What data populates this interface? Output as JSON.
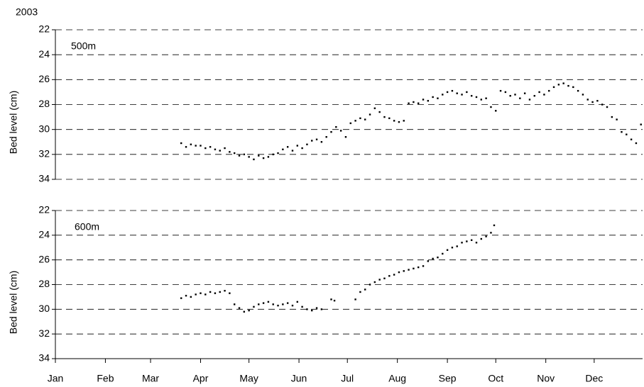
{
  "chart_data": [
    {
      "type": "scatter",
      "title": "2003",
      "label": "500m",
      "ylabel": "Bed level (cm)",
      "color": "#000000",
      "grid": true,
      "xlim": [
        1,
        365
      ],
      "ylim": [
        22,
        34
      ],
      "y_inverted": true,
      "yticks": [
        22,
        24,
        26,
        28,
        30,
        32,
        34
      ],
      "x": [
        79,
        82,
        85,
        88,
        91,
        94,
        97,
        100,
        103,
        106,
        109,
        112,
        115,
        118,
        121,
        124,
        127,
        130,
        133,
        136,
        139,
        142,
        145,
        148,
        151,
        154,
        157,
        160,
        163,
        166,
        169,
        172,
        175,
        178,
        181,
        184,
        187,
        190,
        193,
        196,
        199,
        202,
        205,
        208,
        211,
        214,
        217,
        220,
        223,
        226,
        229,
        232,
        235,
        238,
        241,
        244,
        247,
        250,
        253,
        256,
        259,
        262,
        265,
        268,
        271,
        274,
        277,
        280,
        283,
        286,
        289,
        292,
        295,
        298,
        301,
        304,
        307,
        310,
        313,
        316,
        319,
        322,
        325,
        328,
        331,
        334,
        337,
        340,
        343,
        346,
        349,
        352,
        355,
        358,
        361,
        364
      ],
      "values": [
        31.1,
        31.4,
        31.2,
        31.3,
        31.3,
        31.5,
        31.4,
        31.6,
        31.7,
        31.5,
        31.8,
        31.9,
        32.1,
        32.0,
        32.2,
        32.4,
        32.1,
        32.3,
        32.2,
        32.0,
        31.9,
        31.6,
        31.4,
        31.7,
        31.3,
        31.5,
        31.2,
        30.9,
        30.8,
        31.0,
        30.6,
        30.2,
        29.8,
        30.1,
        30.6,
        29.5,
        29.3,
        29.1,
        29.2,
        28.8,
        28.3,
        28.6,
        29.0,
        29.1,
        29.3,
        29.4,
        29.3,
        27.9,
        27.8,
        27.9,
        27.6,
        27.7,
        27.4,
        27.5,
        27.2,
        27.0,
        26.9,
        27.1,
        27.2,
        27.0,
        27.3,
        27.4,
        27.6,
        27.5,
        28.2,
        28.5,
        26.9,
        27.0,
        27.3,
        27.2,
        27.5,
        27.1,
        27.6,
        27.3,
        27.0,
        27.2,
        26.9,
        26.6,
        26.4,
        26.3,
        26.5,
        26.6,
        26.9,
        27.2,
        27.6,
        27.8,
        27.7,
        28.0,
        28.2,
        29.0,
        29.2,
        30.2,
        30.4,
        30.8,
        31.1,
        29.6
      ]
    },
    {
      "type": "scatter",
      "label": "600m",
      "ylabel": "Bed level (cm)",
      "color": "#000000",
      "grid": true,
      "xlim": [
        1,
        365
      ],
      "ylim": [
        22,
        34
      ],
      "y_inverted": true,
      "yticks": [
        22,
        24,
        26,
        28,
        30,
        32,
        34
      ],
      "xticks": [
        {
          "value": 1,
          "label": "Jan"
        },
        {
          "value": 32,
          "label": "Feb"
        },
        {
          "value": 60,
          "label": "Mar"
        },
        {
          "value": 91,
          "label": "Apr"
        },
        {
          "value": 121,
          "label": "May"
        },
        {
          "value": 152,
          "label": "Jun"
        },
        {
          "value": 182,
          "label": "Jul"
        },
        {
          "value": 213,
          "label": "Aug"
        },
        {
          "value": 244,
          "label": "Sep"
        },
        {
          "value": 274,
          "label": "Oct"
        },
        {
          "value": 305,
          "label": "Nov"
        },
        {
          "value": 335,
          "label": "Dec"
        }
      ],
      "x": [
        79,
        82,
        85,
        88,
        91,
        94,
        97,
        100,
        103,
        106,
        109,
        112,
        115,
        118,
        121,
        124,
        127,
        130,
        133,
        136,
        139,
        142,
        145,
        148,
        151,
        154,
        157,
        160,
        163,
        166,
        172,
        174,
        187,
        190,
        193,
        196,
        199,
        202,
        205,
        208,
        211,
        214,
        217,
        220,
        223,
        226,
        229,
        232,
        235,
        238,
        241,
        244,
        247,
        250,
        253,
        256,
        259,
        262,
        265,
        268,
        271,
        273
      ],
      "values": [
        29.1,
        28.9,
        29.0,
        28.8,
        28.7,
        28.8,
        28.6,
        28.7,
        28.6,
        28.5,
        28.7,
        29.6,
        29.9,
        30.2,
        30.1,
        29.8,
        29.6,
        29.5,
        29.4,
        29.6,
        29.7,
        29.6,
        29.5,
        29.7,
        29.4,
        29.8,
        30.0,
        30.1,
        29.9,
        30.0,
        29.2,
        29.3,
        29.2,
        28.6,
        28.4,
        28.0,
        27.8,
        27.6,
        27.5,
        27.3,
        27.2,
        27.0,
        26.9,
        26.8,
        26.7,
        26.6,
        26.5,
        26.1,
        25.9,
        25.8,
        25.5,
        25.2,
        25.0,
        24.9,
        24.6,
        24.5,
        24.4,
        24.6,
        24.3,
        24.1,
        23.8,
        23.2
      ]
    }
  ]
}
